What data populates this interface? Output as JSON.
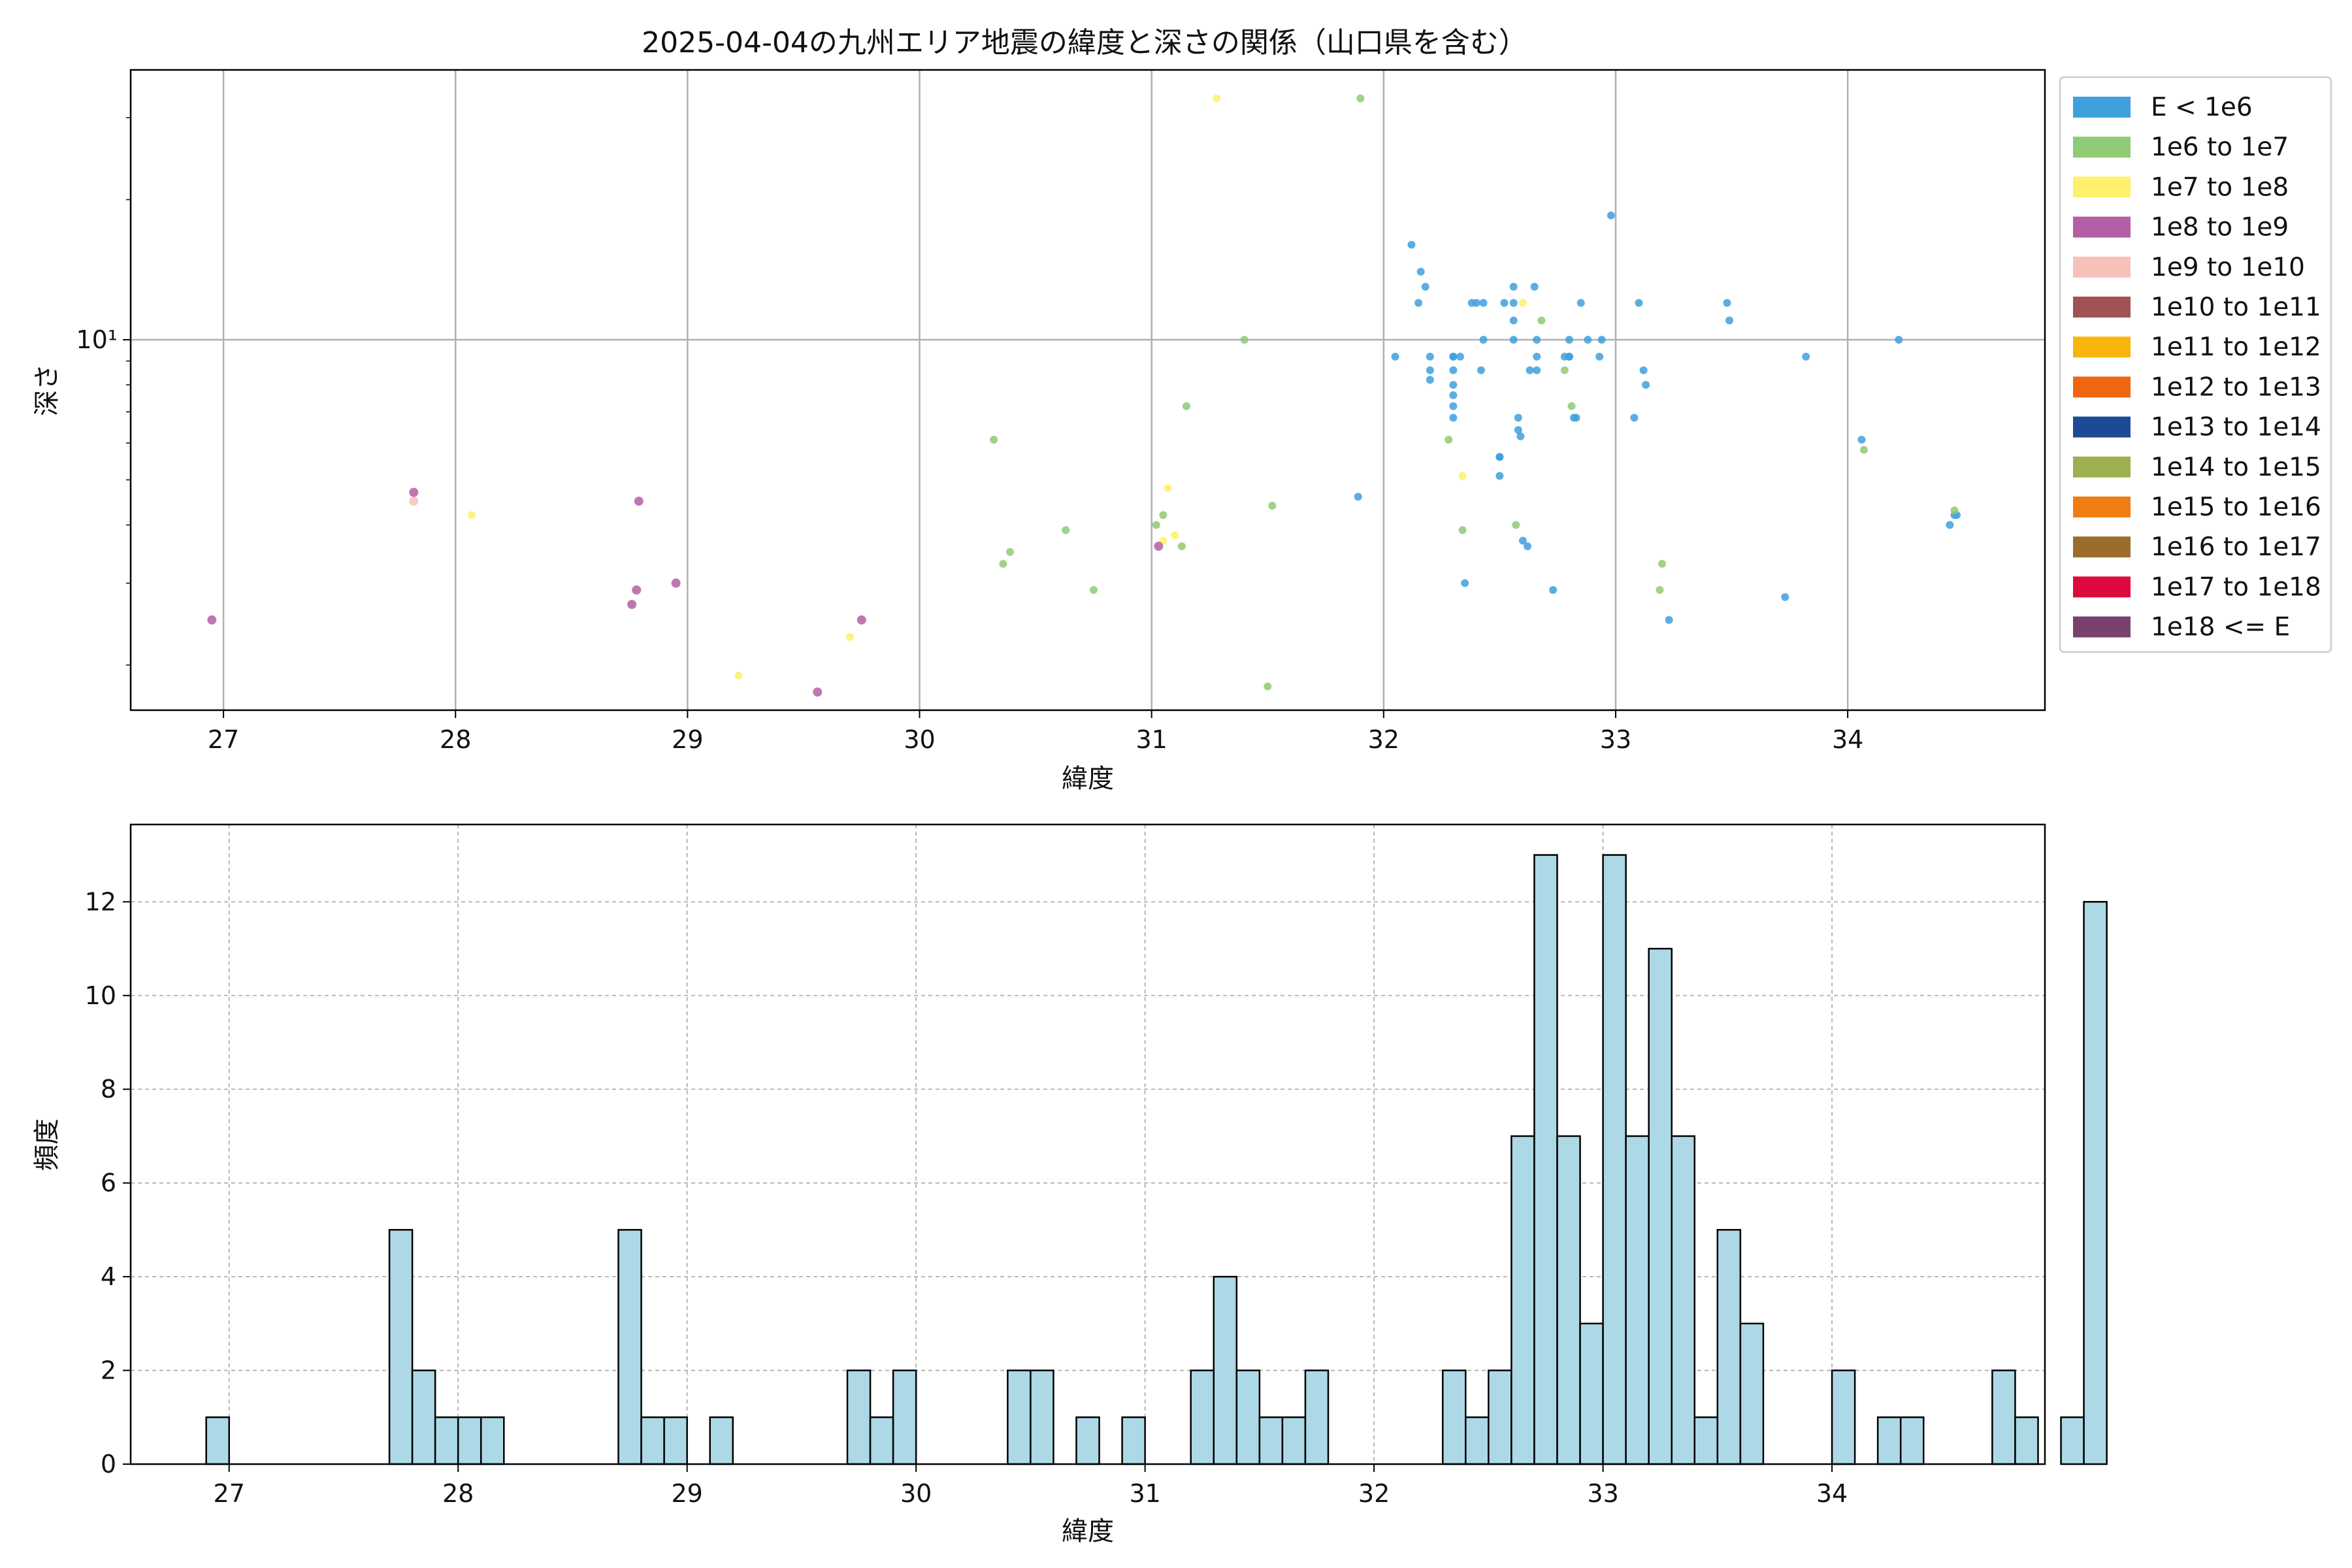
{
  "title": "2025-04-04の九州エリア地震の緯度と深さの関係（山口県を含む）",
  "colors": {
    "hist_fill": "#add8e6",
    "hist_edge": "#000000",
    "grid": "#b0b0b0"
  },
  "chart_data": [
    {
      "type": "scatter",
      "title": "2025-04-04の九州エリア地震の緯度と深さの関係（山口県を含む）",
      "xlabel": "緯度",
      "ylabel": "深さ",
      "xlim": [
        26.6,
        34.85
      ],
      "ylim": [
        1.6,
        38
      ],
      "yscale": "log",
      "x_ticks": [
        27,
        28,
        29,
        30,
        31,
        32,
        33,
        34
      ],
      "y_tick_label": "10¹",
      "grid": true,
      "legend_position": "outside-right",
      "legend": [
        {
          "label": "E < 1e6",
          "color": "#3fa0dc"
        },
        {
          "label": "1e6 to 1e7",
          "color": "#8fca74"
        },
        {
          "label": "1e7 to 1e8",
          "color": "#fff06b"
        },
        {
          "label": "1e8 to 1e9",
          "color": "#b45fa5"
        },
        {
          "label": "1e9 to 1e10",
          "color": "#f6c1b9"
        },
        {
          "label": "1e10 to 1e11",
          "color": "#a05352"
        },
        {
          "label": "1e11 to 1e12",
          "color": "#f8b50d"
        },
        {
          "label": "1e12 to 1e13",
          "color": "#ef6512"
        },
        {
          "label": "1e13 to 1e14",
          "color": "#1d4a95"
        },
        {
          "label": "1e14 to 1e15",
          "color": "#9cb04f"
        },
        {
          "label": "1e15 to 1e16",
          "color": "#f07c14"
        },
        {
          "label": "1e16 to 1e17",
          "color": "#9b6d2c"
        },
        {
          "label": "1e17 to 1e18",
          "color": "#dd0a3e"
        },
        {
          "label": "1e18 <= E",
          "color": "#79416d"
        }
      ],
      "series": [
        {
          "class": 0,
          "points": [
            [
              31.89,
              4.6
            ],
            [
              32.05,
              9.2
            ],
            [
              32.12,
              16
            ],
            [
              32.15,
              12
            ],
            [
              32.16,
              14
            ],
            [
              32.18,
              13
            ],
            [
              32.2,
              9.2
            ],
            [
              32.2,
              8.6
            ],
            [
              32.2,
              8.2
            ],
            [
              32.3,
              9.2
            ],
            [
              32.3,
              9.2
            ],
            [
              32.3,
              8.6
            ],
            [
              32.3,
              8
            ],
            [
              32.3,
              7.6
            ],
            [
              32.3,
              7.2
            ],
            [
              32.3,
              6.8
            ],
            [
              32.33,
              9.2
            ],
            [
              32.35,
              3
            ],
            [
              32.38,
              12
            ],
            [
              32.4,
              12
            ],
            [
              32.42,
              8.6
            ],
            [
              32.43,
              12
            ],
            [
              32.43,
              10
            ],
            [
              32.5,
              5.6
            ],
            [
              32.5,
              5.6
            ],
            [
              32.5,
              5.1
            ],
            [
              32.52,
              12
            ],
            [
              32.56,
              13
            ],
            [
              32.56,
              12
            ],
            [
              32.56,
              11
            ],
            [
              32.56,
              10
            ],
            [
              32.58,
              6.8
            ],
            [
              32.58,
              6.4
            ],
            [
              32.59,
              6.2
            ],
            [
              32.6,
              3.7
            ],
            [
              32.62,
              3.6
            ],
            [
              32.63,
              8.6
            ],
            [
              32.65,
              13
            ],
            [
              32.66,
              10
            ],
            [
              32.66,
              9.2
            ],
            [
              32.66,
              8.6
            ],
            [
              32.73,
              2.9
            ],
            [
              32.78,
              9.2
            ],
            [
              32.8,
              10
            ],
            [
              32.8,
              9.2
            ],
            [
              32.8,
              9.2
            ],
            [
              32.82,
              6.8
            ],
            [
              32.83,
              6.8
            ],
            [
              32.85,
              12
            ],
            [
              32.88,
              10
            ],
            [
              32.93,
              9.2
            ],
            [
              32.94,
              10
            ],
            [
              32.98,
              18.5
            ],
            [
              33.08,
              6.8
            ],
            [
              33.1,
              12
            ],
            [
              33.12,
              8.6
            ],
            [
              33.13,
              8
            ],
            [
              33.23,
              2.5
            ],
            [
              33.48,
              12
            ],
            [
              33.49,
              11
            ],
            [
              33.73,
              2.8
            ],
            [
              33.82,
              9.2
            ],
            [
              34.06,
              6.1
            ],
            [
              34.22,
              10
            ],
            [
              34.44,
              4
            ],
            [
              34.46,
              4.2
            ],
            [
              34.47,
              4.2
            ]
          ]
        },
        {
          "class": 1,
          "points": [
            [
              30.32,
              6.1
            ],
            [
              30.36,
              3.3
            ],
            [
              30.39,
              3.5
            ],
            [
              30.63,
              3.9
            ],
            [
              30.75,
              2.9
            ],
            [
              31.02,
              4
            ],
            [
              31.05,
              4.2
            ],
            [
              31.13,
              3.6
            ],
            [
              31.15,
              7.2
            ],
            [
              31.4,
              10
            ],
            [
              31.5,
              1.8
            ],
            [
              31.52,
              4.4
            ],
            [
              31.9,
              33
            ],
            [
              32.28,
              6.1
            ],
            [
              32.34,
              3.9
            ],
            [
              32.57,
              4
            ],
            [
              32.68,
              11
            ],
            [
              32.78,
              8.6
            ],
            [
              32.81,
              7.2
            ],
            [
              33.19,
              2.9
            ],
            [
              33.2,
              3.3
            ],
            [
              34.07,
              5.8
            ],
            [
              34.46,
              4.3
            ]
          ]
        },
        {
          "class": 2,
          "points": [
            [
              28.07,
              4.2
            ],
            [
              29.22,
              1.9
            ],
            [
              29.7,
              2.3
            ],
            [
              31.05,
              3.7
            ],
            [
              31.07,
              4.8
            ],
            [
              31.1,
              3.8
            ],
            [
              31.28,
              33
            ],
            [
              32.34,
              5.1
            ],
            [
              32.6,
              12
            ]
          ]
        },
        {
          "class": 4,
          "points": [
            [
              27.82,
              4.5
            ]
          ]
        },
        {
          "class": 3,
          "points": [
            [
              26.95,
              2.5
            ],
            [
              27.82,
              4.7
            ],
            [
              28.76,
              2.7
            ],
            [
              28.78,
              2.9
            ],
            [
              28.79,
              4.5
            ],
            [
              28.95,
              3
            ],
            [
              29.56,
              1.75
            ],
            [
              29.75,
              2.5
            ],
            [
              31.03,
              3.6
            ]
          ]
        }
      ]
    },
    {
      "type": "bar",
      "xlabel": "緯度",
      "ylabel": "頻度",
      "xlim": [
        26.57,
        34.93
      ],
      "ylim": [
        0,
        13.65
      ],
      "x_ticks": [
        27,
        28,
        29,
        30,
        31,
        32,
        33,
        34
      ],
      "y_ticks": [
        0,
        2,
        4,
        6,
        8,
        10,
        12
      ],
      "grid": true,
      "bin_start": 26.9,
      "bin_width": 0.1,
      "values": [
        1,
        0,
        0,
        0,
        0,
        0,
        0,
        0,
        5,
        2,
        1,
        1,
        1,
        0,
        0,
        0,
        0,
        0,
        5,
        1,
        1,
        0,
        1,
        0,
        0,
        0,
        0,
        0,
        2,
        1,
        2,
        0,
        0,
        0,
        0,
        2,
        2,
        0,
        1,
        0,
        1,
        0,
        0,
        2,
        4,
        2,
        1,
        1,
        2,
        0,
        0,
        0,
        0,
        0,
        2,
        1,
        2,
        7,
        13,
        7,
        3,
        13,
        7,
        11,
        7,
        1,
        5,
        3,
        0,
        0,
        0,
        2,
        0,
        1,
        1,
        0,
        0,
        0,
        2,
        1,
        0,
        1,
        12
      ]
    }
  ]
}
